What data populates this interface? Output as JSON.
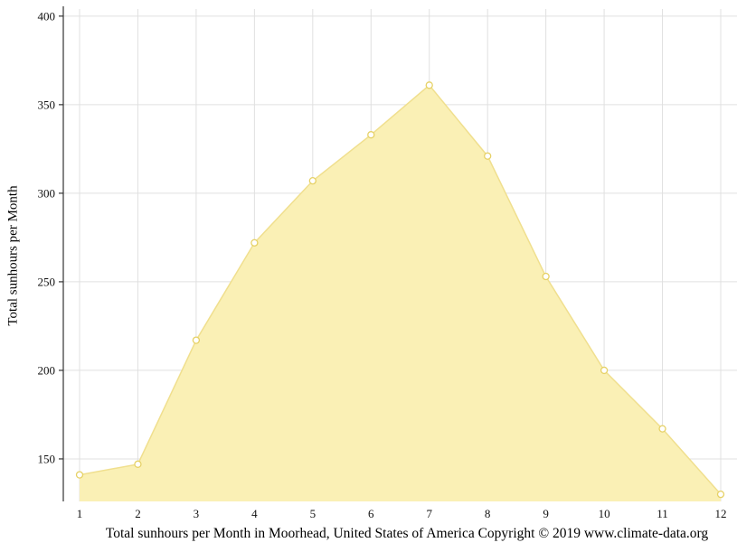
{
  "chart_data": {
    "type": "area",
    "title": "",
    "x": [
      1,
      2,
      3,
      4,
      5,
      6,
      7,
      8,
      9,
      10,
      11,
      12
    ],
    "values": [
      141,
      147,
      217,
      272,
      307,
      333,
      361,
      321,
      253,
      200,
      167,
      130
    ],
    "series_name": "Total sunhours",
    "xlabel": "Total sunhours per Month in Moorhead, United States of America Copyright © 2019 www.climate-data.org",
    "ylabel": "Total sunhours per Month",
    "ylim": [
      126,
      404
    ],
    "yticks": [
      150,
      200,
      250,
      300,
      350,
      400
    ],
    "grid": true,
    "legend": "none",
    "colors": {
      "fill": "#FAF0B5",
      "line": "#F0DF8E",
      "marker_fill": "#FFFFFF",
      "marker_stroke": "#E6D166",
      "grid": "#E0E0E0",
      "axis": "#333333",
      "text": "#111111",
      "background": "#FFFFFF"
    }
  }
}
